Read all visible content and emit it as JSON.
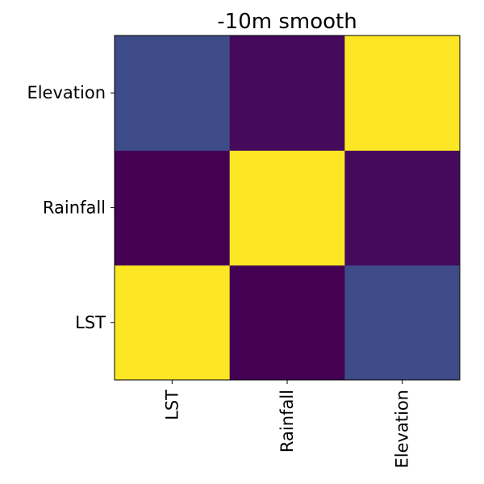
{
  "chart_data": {
    "type": "heatmap",
    "title": "-10m smooth",
    "xlabel": "",
    "ylabel": "",
    "x_categories": [
      "LST",
      "Rainfall",
      "Elevation"
    ],
    "y_categories": [
      "LST",
      "Rainfall",
      "Elevation"
    ],
    "y_order": "bottom-to-top",
    "values": [
      [
        1.0,
        -0.55,
        -0.1
      ],
      [
        -0.55,
        1.0,
        -0.5
      ],
      [
        -0.1,
        -0.5,
        1.0
      ]
    ],
    "colormap": "viridis",
    "vmin": -0.55,
    "vmax": 1.0,
    "grid": false,
    "colors": {
      "low": "#440154",
      "mid_low": "#3b4d8a",
      "high": "#fde725"
    }
  }
}
